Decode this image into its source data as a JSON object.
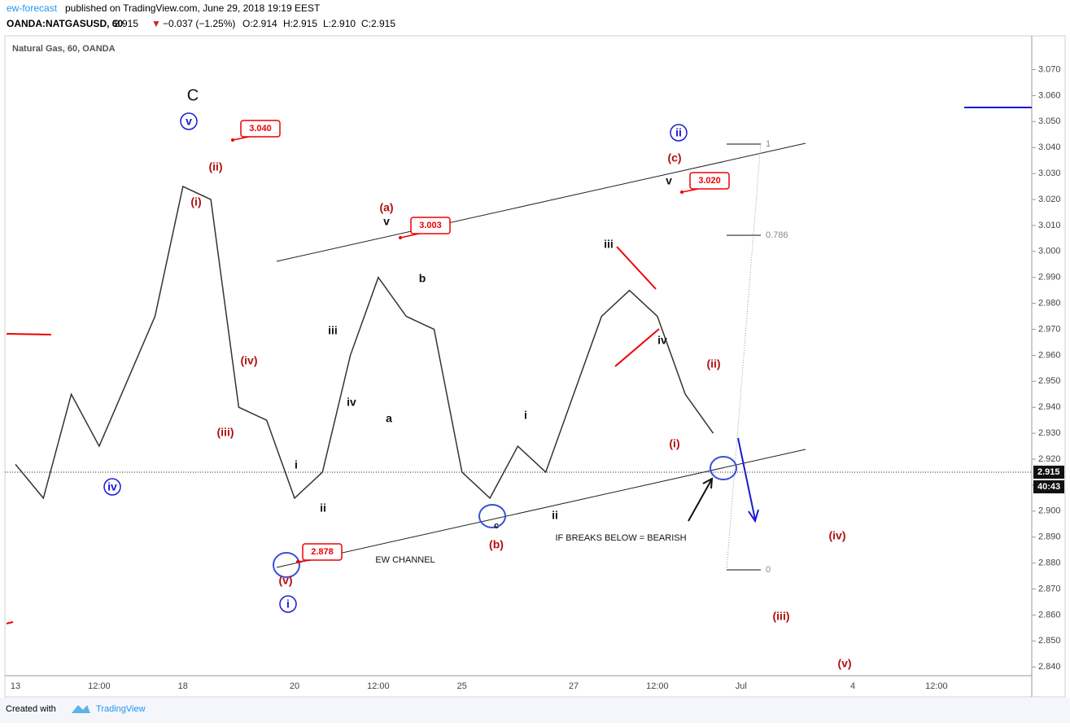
{
  "header": {
    "author": "ew-forecast",
    "published": "published on TradingView.com, June 29, 2018 19:19 EEST",
    "symbol": "OANDA:NATGASUSD, 60",
    "last": "2.915",
    "arrow": "▼",
    "change": "−0.037 (−1.25%)",
    "ohlc": [
      "O:2.914",
      "H:2.915",
      "L:2.910",
      "C:2.915"
    ]
  },
  "footer": {
    "created": "Created with",
    "brand": "TradingView"
  },
  "chart_data": {
    "type": "line",
    "title": "Natural Gas, 60, OANDA",
    "color": "#333333",
    "categories": [
      "13",
      null,
      null,
      "12:00",
      null,
      null,
      "18",
      null,
      null,
      null,
      "20",
      null,
      null,
      "12:00",
      null,
      null,
      "25",
      null,
      null,
      null,
      "27",
      null,
      null,
      "12:00",
      null,
      null,
      "Jul",
      null,
      null,
      null,
      "4",
      null,
      null,
      "12:00",
      null,
      null,
      null
    ],
    "values": [
      2.918,
      2.905,
      2.945,
      2.925,
      2.95,
      2.975,
      3.025,
      3.02,
      2.94,
      2.935,
      2.905,
      2.915,
      2.96,
      2.99,
      2.975,
      2.97,
      2.915,
      2.905,
      2.925,
      2.915,
      2.945,
      2.975,
      2.985,
      2.975,
      2.945,
      2.93,
      null,
      null,
      null,
      null,
      null,
      null,
      null,
      null,
      null,
      null,
      null
    ],
    "ylim": [
      2.836,
      3.078
    ],
    "yticks": [
      {
        "value": 2.84,
        "label": "2.840"
      },
      {
        "value": 2.85,
        "label": "2.850"
      },
      {
        "value": 2.86,
        "label": "2.860"
      },
      {
        "value": 2.87,
        "label": "2.870"
      },
      {
        "value": 2.88,
        "label": "2.880"
      },
      {
        "value": 2.89,
        "label": "2.890"
      },
      {
        "value": 2.9,
        "label": "2.900"
      },
      {
        "value": 2.91,
        "label": "2.910"
      },
      {
        "value": 2.92,
        "label": "2.920"
      },
      {
        "value": 2.93,
        "label": "2.930"
      },
      {
        "value": 2.94,
        "label": "2.940"
      },
      {
        "value": 2.95,
        "label": "2.950"
      },
      {
        "value": 2.96,
        "label": "2.960"
      },
      {
        "value": 2.97,
        "label": "2.970"
      },
      {
        "value": 2.98,
        "label": "2.980"
      },
      {
        "value": 2.99,
        "label": "2.990"
      },
      {
        "value": 3.0,
        "label": "3.000"
      },
      {
        "value": 3.01,
        "label": "3.010"
      },
      {
        "value": 3.02,
        "label": "3.020"
      },
      {
        "value": 3.03,
        "label": "3.030"
      },
      {
        "value": 3.04,
        "label": "3.040"
      },
      {
        "value": 3.05,
        "label": "3.050"
      },
      {
        "value": 3.06,
        "label": "3.060"
      },
      {
        "value": 3.07,
        "label": "3.070"
      }
    ],
    "last_price": {
      "value": 2.915,
      "label": "2.915"
    },
    "countdown": "40:43",
    "price_labels": [
      {
        "value": 3.04,
        "label": "3.040"
      },
      {
        "value": 3.003,
        "label": "3.003"
      },
      {
        "value": 3.02,
        "label": "3.020"
      },
      {
        "value": 2.878,
        "label": "2.878"
      }
    ],
    "fib_levels": [
      1,
      0.786,
      0
    ],
    "wave_labels": [
      "C",
      "v",
      "(ii)",
      "(i)",
      "(iv)",
      "(iii)",
      "iv",
      "i",
      "ii",
      "(v)",
      "i",
      "iii",
      "iv",
      "(a)",
      "v",
      "a",
      "b",
      "i",
      "c",
      "(b)",
      "ii",
      "iii",
      "iv",
      "v",
      "(c)",
      "ii",
      "(i)",
      "(ii)",
      "(iv)",
      "(iii)",
      "(v)"
    ],
    "annotations": [
      "EW CHANNEL",
      "IF BREAKS BELOW = BEARISH"
    ]
  }
}
